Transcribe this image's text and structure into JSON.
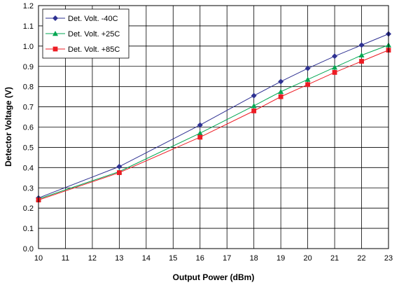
{
  "chart_data": {
    "type": "line",
    "xlabel": "Output Power (dBm)",
    "ylabel": "Detector Voltage (V)",
    "xlim": [
      10,
      23
    ],
    "ylim": [
      0.0,
      1.2
    ],
    "x_ticks": [
      10,
      11,
      12,
      13,
      14,
      15,
      16,
      17,
      18,
      19,
      20,
      21,
      22,
      23
    ],
    "y_ticks": [
      "0.0",
      "0.1",
      "0.2",
      "0.3",
      "0.4",
      "0.5",
      "0.6",
      "0.7",
      "0.8",
      "0.9",
      "1.0",
      "1.1",
      "1.2"
    ],
    "grid": true,
    "legend_position": "top-left",
    "x": [
      10,
      13,
      16,
      18,
      19,
      20,
      21,
      22,
      23
    ],
    "series": [
      {
        "name": "Det. Volt. -40C",
        "color": "#2E3192",
        "marker": "diamond",
        "values": [
          0.25,
          0.405,
          0.61,
          0.755,
          0.825,
          0.89,
          0.95,
          1.005,
          1.06
        ]
      },
      {
        "name": "Det. Volt. +25C",
        "color": "#00A651",
        "marker": "triangle",
        "values": [
          0.245,
          0.38,
          0.57,
          0.705,
          0.775,
          0.835,
          0.895,
          0.955,
          1.005
        ]
      },
      {
        "name": "Det. Volt. +85C",
        "color": "#ED1C24",
        "marker": "square",
        "values": [
          0.24,
          0.375,
          0.55,
          0.68,
          0.75,
          0.81,
          0.87,
          0.925,
          0.98
        ]
      }
    ]
  }
}
